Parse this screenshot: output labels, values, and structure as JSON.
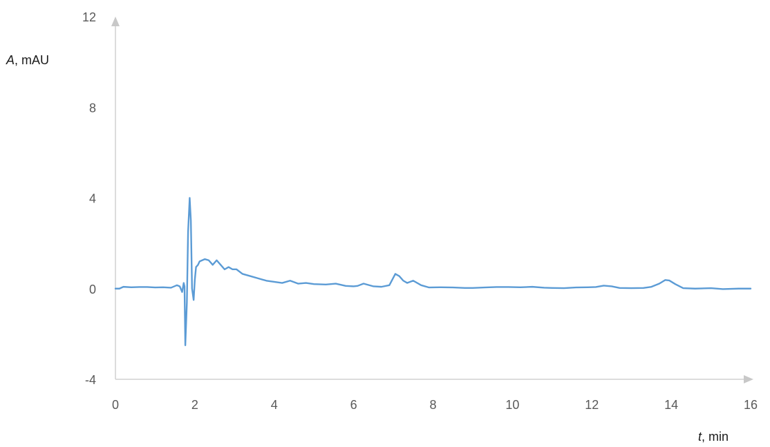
{
  "chart_data": {
    "type": "line",
    "xlabel_italic": "t",
    "xlabel_rest": ", min",
    "ylabel_italic": "A",
    "ylabel_rest": ", mAU",
    "xlim": [
      0,
      16
    ],
    "ylim": [
      -4,
      12
    ],
    "x_ticks": [
      "0",
      "2",
      "4",
      "6",
      "8",
      "10",
      "12",
      "14",
      "16"
    ],
    "y_ticks": [
      "-4",
      "0",
      "4",
      "8",
      "12"
    ],
    "grid": false,
    "legend": "none",
    "series": [
      {
        "color": "#5b9bd5",
        "points": [
          [
            0.0,
            0.0
          ],
          [
            0.1,
            0.0
          ],
          [
            0.2,
            0.08
          ],
          [
            0.4,
            0.06
          ],
          [
            0.6,
            0.07
          ],
          [
            0.8,
            0.07
          ],
          [
            1.0,
            0.05
          ],
          [
            1.2,
            0.06
          ],
          [
            1.4,
            0.04
          ],
          [
            1.55,
            0.15
          ],
          [
            1.62,
            0.1
          ],
          [
            1.68,
            -0.15
          ],
          [
            1.72,
            0.25
          ],
          [
            1.74,
            0.1
          ],
          [
            1.76,
            -2.5
          ],
          [
            1.8,
            -0.6
          ],
          [
            1.83,
            2.5
          ],
          [
            1.87,
            4.0
          ],
          [
            1.9,
            3.0
          ],
          [
            1.93,
            0.0
          ],
          [
            1.97,
            -0.5
          ],
          [
            2.0,
            0.4
          ],
          [
            2.03,
            0.95
          ],
          [
            2.08,
            1.05
          ],
          [
            2.12,
            1.2
          ],
          [
            2.25,
            1.3
          ],
          [
            2.35,
            1.25
          ],
          [
            2.45,
            1.05
          ],
          [
            2.55,
            1.25
          ],
          [
            2.65,
            1.05
          ],
          [
            2.75,
            0.85
          ],
          [
            2.85,
            0.95
          ],
          [
            2.95,
            0.85
          ],
          [
            3.05,
            0.85
          ],
          [
            3.2,
            0.65
          ],
          [
            3.4,
            0.55
          ],
          [
            3.6,
            0.45
          ],
          [
            3.8,
            0.35
          ],
          [
            4.0,
            0.3
          ],
          [
            4.2,
            0.25
          ],
          [
            4.4,
            0.35
          ],
          [
            4.6,
            0.22
          ],
          [
            4.8,
            0.25
          ],
          [
            5.0,
            0.2
          ],
          [
            5.3,
            0.18
          ],
          [
            5.55,
            0.22
          ],
          [
            5.8,
            0.12
          ],
          [
            6.0,
            0.1
          ],
          [
            6.1,
            0.12
          ],
          [
            6.25,
            0.22
          ],
          [
            6.5,
            0.1
          ],
          [
            6.7,
            0.08
          ],
          [
            6.9,
            0.15
          ],
          [
            7.05,
            0.65
          ],
          [
            7.15,
            0.55
          ],
          [
            7.25,
            0.35
          ],
          [
            7.35,
            0.25
          ],
          [
            7.5,
            0.35
          ],
          [
            7.7,
            0.15
          ],
          [
            7.9,
            0.05
          ],
          [
            8.2,
            0.06
          ],
          [
            8.5,
            0.05
          ],
          [
            8.8,
            0.03
          ],
          [
            9.0,
            0.03
          ],
          [
            9.3,
            0.05
          ],
          [
            9.6,
            0.07
          ],
          [
            9.9,
            0.07
          ],
          [
            10.2,
            0.06
          ],
          [
            10.5,
            0.08
          ],
          [
            10.8,
            0.04
          ],
          [
            11.0,
            0.03
          ],
          [
            11.3,
            0.02
          ],
          [
            11.6,
            0.05
          ],
          [
            11.9,
            0.06
          ],
          [
            12.1,
            0.07
          ],
          [
            12.3,
            0.13
          ],
          [
            12.5,
            0.1
          ],
          [
            12.7,
            0.03
          ],
          [
            13.0,
            0.02
          ],
          [
            13.3,
            0.03
          ],
          [
            13.5,
            0.08
          ],
          [
            13.7,
            0.22
          ],
          [
            13.85,
            0.38
          ],
          [
            13.95,
            0.36
          ],
          [
            14.1,
            0.2
          ],
          [
            14.3,
            0.02
          ],
          [
            14.6,
            0.0
          ],
          [
            15.0,
            0.02
          ],
          [
            15.3,
            -0.02
          ],
          [
            15.7,
            0.0
          ],
          [
            16.0,
            0.0
          ]
        ]
      }
    ]
  }
}
